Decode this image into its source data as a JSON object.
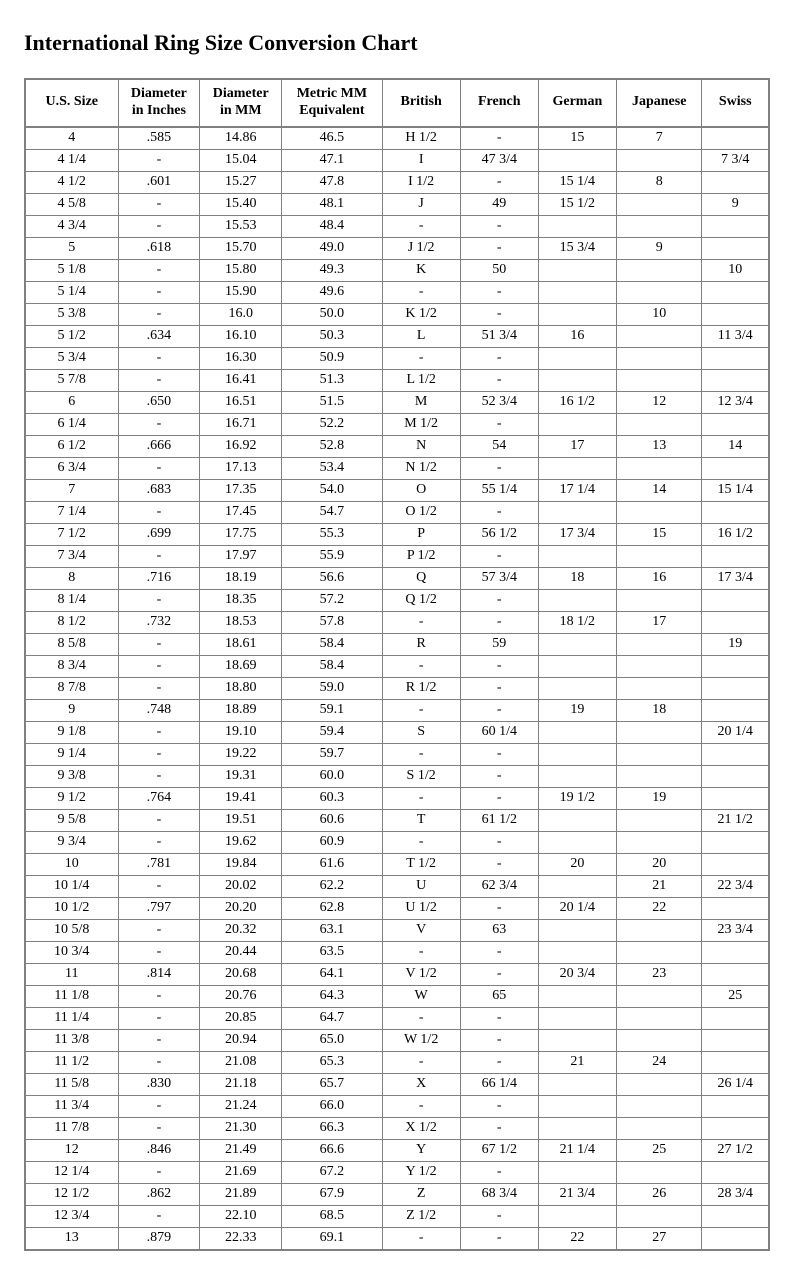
{
  "title": "International Ring Size Conversion Chart",
  "table": {
    "columns": [
      "U.S. Size",
      "Diameter\nin Inches",
      "Diameter\nin MM",
      "Metric MM\nEquivalent",
      "British",
      "French",
      "German",
      "Japanese",
      "Swiss"
    ],
    "col_widths_pct": [
      12.5,
      11.0,
      11.0,
      13.5,
      10.5,
      10.5,
      10.5,
      11.5,
      9.0
    ],
    "header_fontsize": 14,
    "cell_fontsize": 14,
    "border_color": "#808080",
    "background_color": "#ffffff",
    "text_color": "#000000",
    "rows": [
      [
        "4",
        ".585",
        "14.86",
        "46.5",
        "H 1/2",
        "-",
        "15",
        "7",
        ""
      ],
      [
        "4 1/4",
        "-",
        "15.04",
        "47.1",
        "I",
        "47 3/4",
        "",
        "",
        "7 3/4"
      ],
      [
        "4 1/2",
        ".601",
        "15.27",
        "47.8",
        "I 1/2",
        "-",
        "15 1/4",
        "8",
        ""
      ],
      [
        "4 5/8",
        "-",
        "15.40",
        "48.1",
        "J",
        "49",
        "15 1/2",
        "",
        "9"
      ],
      [
        "4 3/4",
        "-",
        "15.53",
        "48.4",
        "-",
        "-",
        "",
        "",
        ""
      ],
      [
        "5",
        ".618",
        "15.70",
        "49.0",
        "J 1/2",
        "-",
        "15 3/4",
        "9",
        ""
      ],
      [
        "5 1/8",
        "-",
        "15.80",
        "49.3",
        "K",
        "50",
        "",
        "",
        "10"
      ],
      [
        "5 1/4",
        "-",
        "15.90",
        "49.6",
        "-",
        "-",
        "",
        "",
        ""
      ],
      [
        "5 3/8",
        "-",
        "16.0",
        "50.0",
        "K 1/2",
        "-",
        "",
        "10",
        ""
      ],
      [
        "5 1/2",
        ".634",
        "16.10",
        "50.3",
        "L",
        "51 3/4",
        "16",
        "",
        "11 3/4"
      ],
      [
        "5 3/4",
        "-",
        "16.30",
        "50.9",
        "-",
        "-",
        "",
        "",
        ""
      ],
      [
        "5 7/8",
        "-",
        "16.41",
        "51.3",
        "L 1/2",
        "-",
        "",
        "",
        ""
      ],
      [
        "6",
        ".650",
        "16.51",
        "51.5",
        "M",
        "52 3/4",
        "16 1/2",
        "12",
        "12 3/4"
      ],
      [
        "6 1/4",
        "-",
        "16.71",
        "52.2",
        "M 1/2",
        "-",
        "",
        "",
        ""
      ],
      [
        "6 1/2",
        ".666",
        "16.92",
        "52.8",
        "N",
        "54",
        "17",
        "13",
        "14"
      ],
      [
        "6 3/4",
        "-",
        "17.13",
        "53.4",
        "N 1/2",
        "-",
        "",
        "",
        ""
      ],
      [
        "7",
        ".683",
        "17.35",
        "54.0",
        "O",
        "55 1/4",
        "17 1/4",
        "14",
        "15 1/4"
      ],
      [
        "7 1/4",
        "-",
        "17.45",
        "54.7",
        "O 1/2",
        "-",
        "",
        "",
        ""
      ],
      [
        "7 1/2",
        ".699",
        "17.75",
        "55.3",
        "P",
        "56 1/2",
        "17 3/4",
        "15",
        "16 1/2"
      ],
      [
        "7 3/4",
        "-",
        "17.97",
        "55.9",
        "P 1/2",
        "-",
        "",
        "",
        ""
      ],
      [
        "8",
        ".716",
        "18.19",
        "56.6",
        "Q",
        "57 3/4",
        "18",
        "16",
        "17 3/4"
      ],
      [
        "8 1/4",
        "-",
        "18.35",
        "57.2",
        "Q 1/2",
        "-",
        "",
        "",
        ""
      ],
      [
        "8 1/2",
        ".732",
        "18.53",
        "57.8",
        "-",
        "-",
        "18 1/2",
        "17",
        ""
      ],
      [
        "8 5/8",
        "-",
        "18.61",
        "58.4",
        "R",
        "59",
        "",
        "",
        "19"
      ],
      [
        "8 3/4",
        "-",
        "18.69",
        "58.4",
        "-",
        "-",
        "",
        "",
        ""
      ],
      [
        "8 7/8",
        "-",
        "18.80",
        "59.0",
        "R 1/2",
        "-",
        "",
        "",
        ""
      ],
      [
        "9",
        ".748",
        "18.89",
        "59.1",
        "-",
        "-",
        "19",
        "18",
        ""
      ],
      [
        "9 1/8",
        "-",
        "19.10",
        "59.4",
        "S",
        "60 1/4",
        "",
        "",
        "20 1/4"
      ],
      [
        "9 1/4",
        "-",
        "19.22",
        "59.7",
        "-",
        "-",
        "",
        "",
        ""
      ],
      [
        "9 3/8",
        "-",
        "19.31",
        "60.0",
        "S 1/2",
        "-",
        "",
        "",
        ""
      ],
      [
        "9 1/2",
        ".764",
        "19.41",
        "60.3",
        "-",
        "-",
        "19 1/2",
        "19",
        ""
      ],
      [
        "9 5/8",
        "-",
        "19.51",
        "60.6",
        "T",
        "61 1/2",
        "",
        "",
        "21 1/2"
      ],
      [
        "9 3/4",
        "-",
        "19.62",
        "60.9",
        "-",
        "-",
        "",
        "",
        ""
      ],
      [
        "10",
        ".781",
        "19.84",
        "61.6",
        "T 1/2",
        "-",
        "20",
        "20",
        ""
      ],
      [
        "10 1/4",
        "-",
        "20.02",
        "62.2",
        "U",
        "62 3/4",
        "",
        "21",
        "22 3/4"
      ],
      [
        "10 1/2",
        ".797",
        "20.20",
        "62.8",
        "U 1/2",
        "-",
        "20 1/4",
        "22",
        ""
      ],
      [
        "10 5/8",
        "-",
        "20.32",
        "63.1",
        "V",
        "63",
        "",
        "",
        "23 3/4"
      ],
      [
        "10 3/4",
        "-",
        "20.44",
        "63.5",
        "-",
        "-",
        "",
        "",
        ""
      ],
      [
        "11",
        ".814",
        "20.68",
        "64.1",
        "V 1/2",
        "-",
        "20 3/4",
        "23",
        ""
      ],
      [
        "11 1/8",
        "-",
        "20.76",
        "64.3",
        "W",
        "65",
        "",
        "",
        "25"
      ],
      [
        "11 1/4",
        "-",
        "20.85",
        "64.7",
        "-",
        "-",
        "",
        "",
        ""
      ],
      [
        "11 3/8",
        "-",
        "20.94",
        "65.0",
        "W 1/2",
        "-",
        "",
        "",
        ""
      ],
      [
        "11 1/2",
        "-",
        "21.08",
        "65.3",
        "-",
        "-",
        "21",
        "24",
        ""
      ],
      [
        "11 5/8",
        ".830",
        "21.18",
        "65.7",
        "X",
        "66 1/4",
        "",
        "",
        "26 1/4"
      ],
      [
        "11 3/4",
        "-",
        "21.24",
        "66.0",
        "-",
        "-",
        "",
        "",
        ""
      ],
      [
        "11 7/8",
        "-",
        "21.30",
        "66.3",
        "X 1/2",
        "-",
        "",
        "",
        ""
      ],
      [
        "12",
        ".846",
        "21.49",
        "66.6",
        "Y",
        "67 1/2",
        "21 1/4",
        "25",
        "27 1/2"
      ],
      [
        "12 1/4",
        "-",
        "21.69",
        "67.2",
        "Y 1/2",
        "-",
        "",
        "",
        ""
      ],
      [
        "12 1/2",
        ".862",
        "21.89",
        "67.9",
        "Z",
        "68 3/4",
        "21 3/4",
        "26",
        "28 3/4"
      ],
      [
        "12 3/4",
        "-",
        "22.10",
        "68.5",
        "Z 1/2",
        "-",
        "",
        "",
        ""
      ],
      [
        "13",
        ".879",
        "22.33",
        "69.1",
        "-",
        "-",
        "22",
        "27",
        ""
      ]
    ]
  }
}
